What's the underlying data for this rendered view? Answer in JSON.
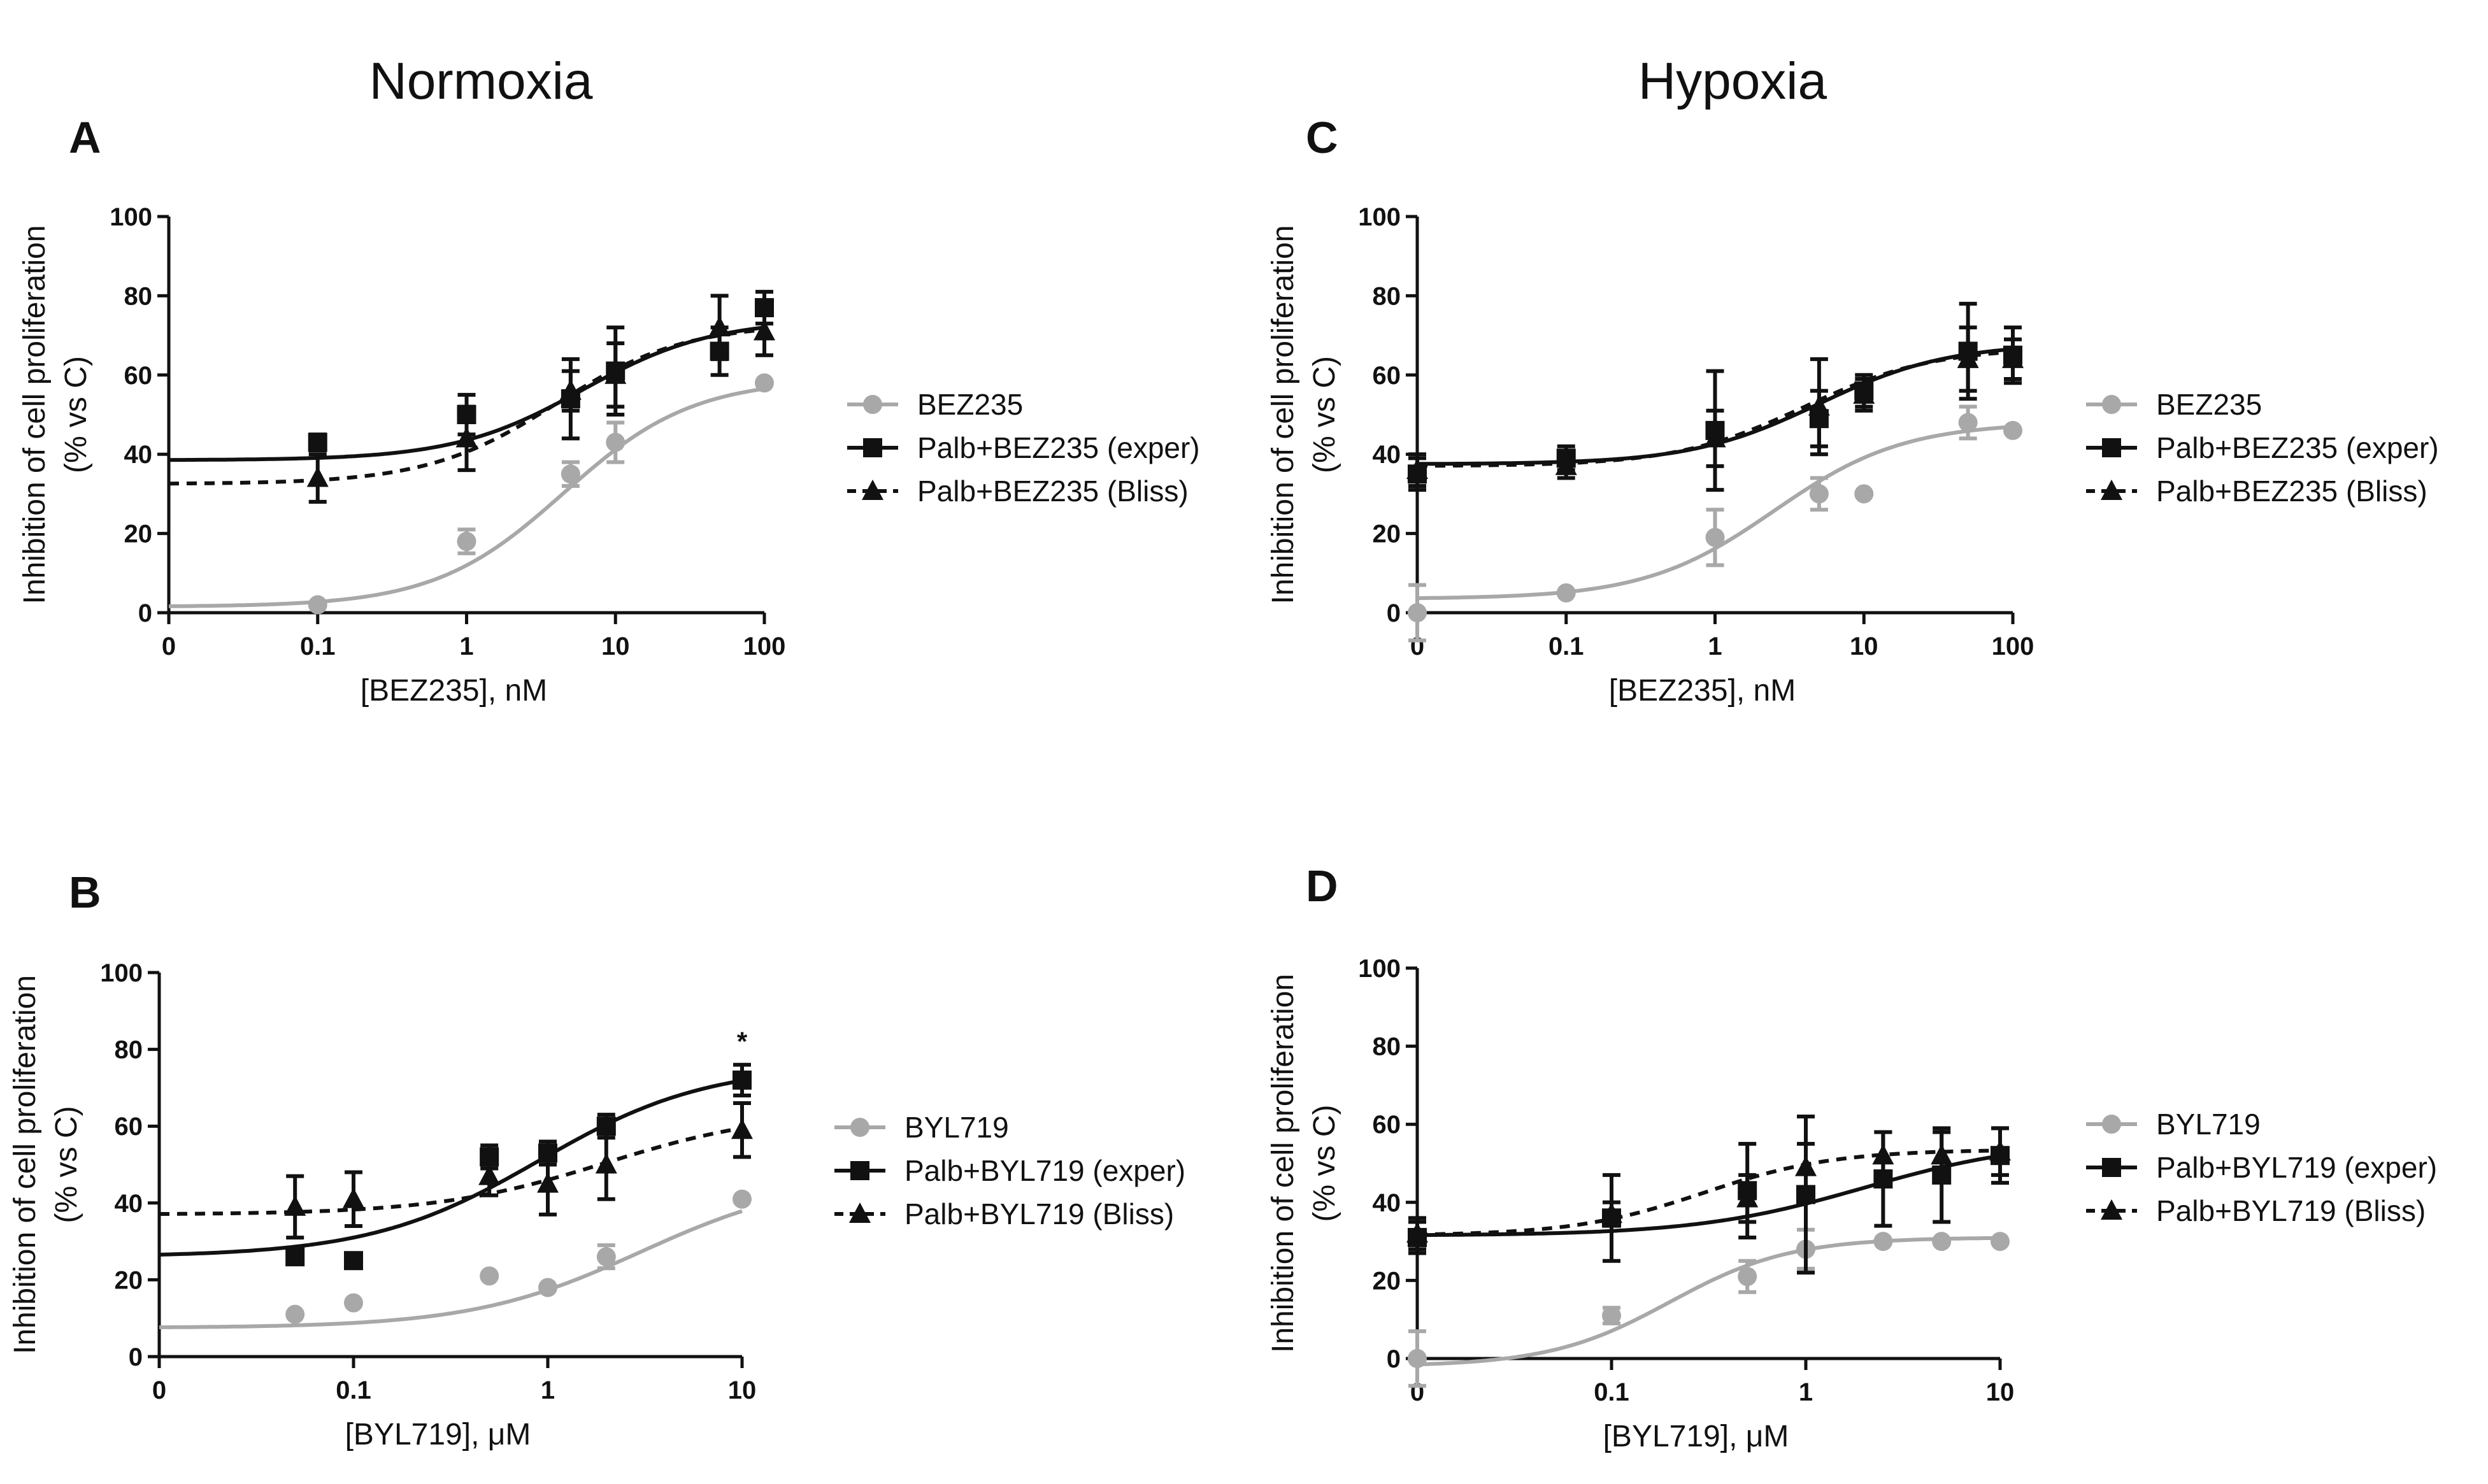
{
  "titles": {
    "left": "Normoxia",
    "right": "Hypoxia"
  },
  "chart_data": [
    {
      "id": "A",
      "type": "scatter",
      "xlabel": "[BEZ235], nM",
      "ylabel": "Inhibition of cell proliferation",
      "ylabel2": "(% vs C)",
      "xticks": [
        "0",
        "0.1",
        "1",
        "10",
        "100"
      ],
      "yticks": [
        "0",
        "20",
        "40",
        "60",
        "80",
        "100"
      ],
      "ylim": [
        0,
        100
      ],
      "series": [
        {
          "name": "BEZ235",
          "style": "circle",
          "line": "solid",
          "color": "#a8a8a8",
          "x": [
            0.1,
            1,
            5,
            10,
            100
          ],
          "y": [
            2,
            18,
            35,
            43,
            58
          ],
          "err": [
            0,
            3,
            3,
            5,
            0
          ],
          "fit": {
            "bottom": 1.5,
            "top": 59,
            "ec50": 4.5,
            "hill": 1.0
          }
        },
        {
          "name": "Palb+BEZ235 (exper)",
          "style": "square",
          "line": "solid",
          "color": "#111111",
          "x": [
            0.1,
            1,
            5,
            10,
            50,
            100
          ],
          "y": [
            43,
            50,
            54,
            61,
            66,
            77
          ],
          "err": [
            2,
            5,
            10,
            11,
            6,
            4
          ],
          "fit": {
            "bottom": 38.5,
            "top": 74,
            "ec50": 6,
            "hill": 1.0
          }
        },
        {
          "name": "Palb+BEZ235 (Bliss)",
          "style": "triangle",
          "line": "dashed",
          "color": "#111111",
          "x": [
            0.1,
            1,
            5,
            10,
            50,
            100
          ],
          "y": [
            34,
            44,
            56,
            60,
            72,
            71
          ],
          "err": [
            6,
            8,
            5,
            8,
            8,
            6
          ],
          "fit": {
            "bottom": 32.5,
            "top": 73,
            "ec50": 4,
            "hill": 1.0
          }
        }
      ]
    },
    {
      "id": "B",
      "type": "scatter",
      "xlabel": "[BYL719], μM",
      "ylabel": "Inhibition of cell proliferation",
      "ylabel2": "(% vs C)",
      "xticks": [
        "0",
        "0.1",
        "1",
        "10"
      ],
      "yticks": [
        "0",
        "20",
        "40",
        "60",
        "80",
        "100"
      ],
      "ylim": [
        0,
        100
      ],
      "annotation": "*",
      "series": [
        {
          "name": "BYL719",
          "style": "circle",
          "line": "solid",
          "color": "#a8a8a8",
          "x": [
            0.05,
            0.1,
            0.5,
            1,
            2,
            10
          ],
          "y": [
            11,
            14,
            21,
            18,
            26,
            41
          ],
          "err": [
            0,
            0,
            0,
            0,
            3,
            0
          ],
          "fit": {
            "bottom": 7.5,
            "top": 47,
            "ec50": 3,
            "hill": 1.0
          }
        },
        {
          "name": "Palb+BYL719 (exper)",
          "style": "square",
          "line": "solid",
          "color": "#111111",
          "x": [
            0.05,
            0.1,
            0.5,
            1,
            2,
            10
          ],
          "y": [
            26,
            25,
            52,
            53,
            60,
            72
          ],
          "err": [
            0,
            0,
            3,
            3,
            3,
            4
          ],
          "fit": {
            "bottom": 26,
            "top": 76,
            "ec50": 0.9,
            "hill": 1.0
          }
        },
        {
          "name": "Palb+BYL719 (Bliss)",
          "style": "triangle",
          "line": "dashed",
          "color": "#111111",
          "x": [
            0.05,
            0.1,
            0.5,
            1,
            2,
            10
          ],
          "y": [
            39,
            41,
            47,
            45,
            50,
            59
          ],
          "err": [
            8,
            7,
            5,
            8,
            9,
            7
          ],
          "fit": {
            "bottom": 37,
            "top": 64,
            "ec50": 2,
            "hill": 1.0
          }
        }
      ]
    },
    {
      "id": "C",
      "type": "scatter",
      "xlabel": "[BEZ235], nM",
      "ylabel": "Inhibition of cell proliferation",
      "ylabel2": "(% vs C)",
      "xticks": [
        "0",
        "0.1",
        "1",
        "10",
        "100"
      ],
      "yticks": [
        "0",
        "20",
        "40",
        "60",
        "80",
        "100"
      ],
      "ylim": [
        0,
        100
      ],
      "series": [
        {
          "name": "BEZ235",
          "style": "circle",
          "line": "solid",
          "color": "#a8a8a8",
          "x": [
            0.01,
            0.1,
            1,
            5,
            10,
            50,
            100
          ],
          "y": [
            0,
            5,
            19,
            30,
            30,
            48,
            46
          ],
          "err": [
            7,
            0,
            7,
            4,
            0,
            4,
            0
          ],
          "fit": {
            "bottom": 3.5,
            "top": 48,
            "ec50": 2.5,
            "hill": 1.0
          }
        },
        {
          "name": "Palb+BEZ235 (exper)",
          "style": "square",
          "line": "solid",
          "color": "#111111",
          "x": [
            0.01,
            0.1,
            1,
            5,
            10,
            50,
            100
          ],
          "y": [
            35,
            39,
            46,
            49,
            56,
            66,
            65
          ],
          "err": [
            4,
            3,
            15,
            7,
            4,
            12,
            7
          ],
          "fit": {
            "bottom": 37.5,
            "top": 68,
            "ec50": 5,
            "hill": 1.0
          }
        },
        {
          "name": "Palb+BEZ235 (Bliss)",
          "style": "triangle",
          "line": "dashed",
          "color": "#111111",
          "x": [
            0.01,
            0.1,
            1,
            5,
            10,
            50,
            100
          ],
          "y": [
            36,
            37,
            44,
            52,
            55,
            64,
            64
          ],
          "err": [
            4,
            3,
            7,
            12,
            4,
            8,
            5
          ],
          "fit": {
            "bottom": 37,
            "top": 67,
            "ec50": 4,
            "hill": 1.0
          }
        }
      ]
    },
    {
      "id": "D",
      "type": "scatter",
      "xlabel": "[BYL719], μM",
      "ylabel": "Inhibition of cell proliferation",
      "ylabel2": "(% vs C)",
      "xticks": [
        "0",
        "0.1",
        "1",
        "10"
      ],
      "yticks": [
        "0",
        "20",
        "40",
        "60",
        "80",
        "100"
      ],
      "ylim": [
        0,
        100
      ],
      "series": [
        {
          "name": "BYL719",
          "style": "circle",
          "line": "solid",
          "color": "#a8a8a8",
          "x": [
            0.01,
            0.1,
            0.5,
            1,
            2.5,
            5,
            10
          ],
          "y": [
            0,
            11,
            21,
            28,
            30,
            30,
            30
          ],
          "err": [
            7,
            2,
            4,
            5,
            0,
            0,
            0
          ],
          "fit": {
            "bottom": -2,
            "top": 31,
            "ec50": 0.2,
            "hill": 1.4
          }
        },
        {
          "name": "Palb+BYL719 (exper)",
          "style": "square",
          "line": "solid",
          "color": "#111111",
          "x": [
            0.01,
            0.1,
            0.5,
            1,
            2.5,
            5,
            10
          ],
          "y": [
            31,
            36,
            43,
            42,
            46,
            47,
            52
          ],
          "err": [
            4,
            11,
            12,
            20,
            12,
            12,
            7
          ],
          "fit": {
            "bottom": 31.5,
            "top": 56,
            "ec50": 2,
            "hill": 1.0
          }
        },
        {
          "name": "Palb+BYL719 (Bliss)",
          "style": "triangle",
          "line": "dashed",
          "color": "#111111",
          "x": [
            0.01,
            0.1,
            0.5,
            1,
            2.5,
            5,
            10
          ],
          "y": [
            32,
            37,
            41,
            49,
            52,
            52,
            53
          ],
          "err": [
            4,
            3,
            6,
            6,
            6,
            6,
            6
          ],
          "fit": {
            "bottom": 31.5,
            "top": 53.5,
            "ec50": 0.3,
            "hill": 1.3
          }
        }
      ]
    }
  ]
}
